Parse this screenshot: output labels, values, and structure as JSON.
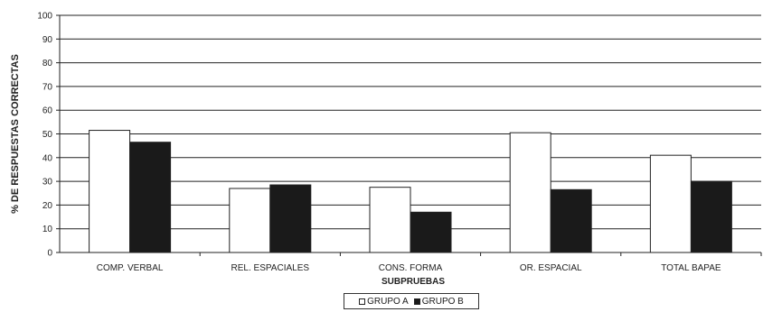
{
  "chart_data": {
    "type": "bar",
    "title": "",
    "xlabel": "SUBPRUEBAS",
    "ylabel": "% DE RESPUESTAS CORRECTAS",
    "ylim": [
      0,
      100
    ],
    "yticks": [
      0,
      10,
      20,
      30,
      40,
      50,
      60,
      70,
      80,
      90,
      100
    ],
    "grid": true,
    "legend_position": "bottom-center",
    "categories": [
      "COMP. VERBAL",
      "REL. ESPACIALES",
      "CONS. FORMA",
      "OR.  ESPACIAL",
      "TOTAL BAPAE"
    ],
    "series": [
      {
        "name": "GRUPO A",
        "color": "#ffffff",
        "values": [
          51.5,
          27,
          27.5,
          50.5,
          41
        ]
      },
      {
        "name": "GRUPO B",
        "color": "#1a1a1a",
        "values": [
          46.5,
          28.5,
          17,
          26.5,
          30
        ]
      }
    ]
  }
}
